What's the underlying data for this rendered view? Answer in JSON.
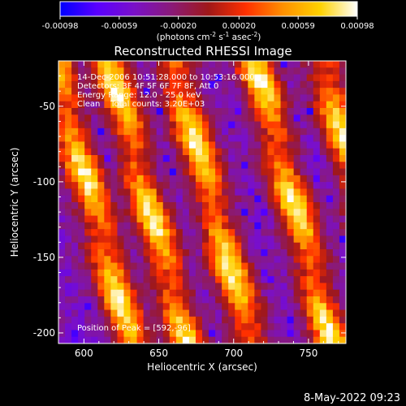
{
  "colorbar": {
    "min": -0.00098,
    "max": 0.00098,
    "tick_labels": [
      "-0.00098",
      "-0.00059",
      "-0.00020",
      "0.00020",
      "0.00059",
      "0.00098"
    ],
    "unit_label_parts": [
      "(photons cm",
      "-2",
      " s",
      "-1",
      " asec",
      "-2",
      ")"
    ],
    "colors": [
      "#0000ff",
      "#5a00ff",
      "#7a10c8",
      "#8a1a78",
      "#a01818",
      "#ff3000",
      "#ff9000",
      "#ffd200",
      "#ffffff"
    ]
  },
  "chart_data": {
    "type": "heatmap",
    "title": "Reconstructed RHESSI Image",
    "xlabel": "Heliocentric X (arcsec)",
    "ylabel": "Heliocentric Y (arcsec)",
    "xlim": [
      583,
      775
    ],
    "ylim": [
      -207,
      -20
    ],
    "x_ticks": [
      600,
      650,
      700,
      750
    ],
    "y_ticks": [
      -50,
      -100,
      -150,
      -200
    ],
    "x_tick_labels": [
      "600",
      "650",
      "700",
      "750"
    ],
    "y_tick_labels": [
      "-50",
      "-100",
      "-150",
      "-200"
    ],
    "annotations": [
      "14-Dec-2006 10:51:28.000 to 10:53:16.000",
      "Detectors: 3F 4F 5F 6F 7F 8F, Att 0",
      "Energy Range: 12.0 - 25.0 keV",
      "Clean    Total counts: 3.20E+03"
    ],
    "peak_label": "Position of Peak = [592,-96]",
    "peak_position": [
      592,
      -96
    ],
    "pattern": {
      "description": "diagonal fringe stripes",
      "stripe_crossings_x_at_y_-50": [
        588,
        625,
        668,
        722,
        768
      ],
      "stripe_drift_arcsec_per_arcsec": 0.28,
      "stripe_half_width_arcsec": 9
    }
  },
  "footer": {
    "timestamp": "8-May-2022 09:23"
  }
}
